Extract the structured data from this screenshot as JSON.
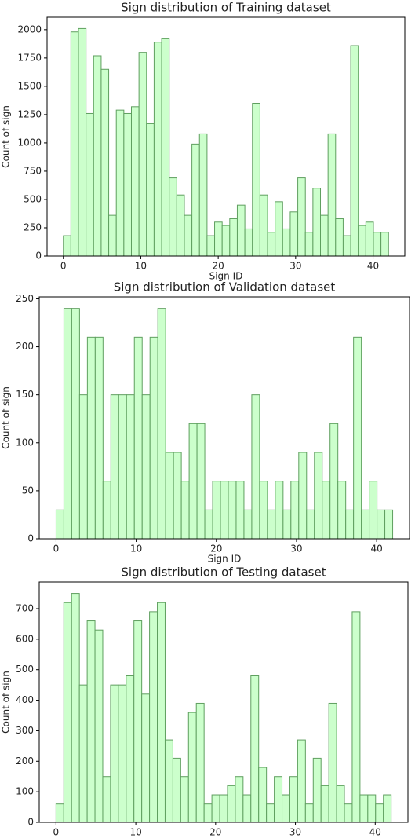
{
  "chart_data": [
    {
      "type": "histogram",
      "title": "Sign distribution of Training dataset",
      "xlabel": "Sign ID",
      "ylabel": "Count of sign",
      "bins": [
        0,
        0.977,
        1.953,
        2.93,
        3.907,
        4.884,
        5.86,
        6.837,
        7.814,
        8.791,
        9.767,
        10.744,
        11.721,
        12.698,
        13.674,
        14.651,
        15.628,
        16.605,
        17.581,
        18.558,
        19.535,
        20.512,
        21.488,
        22.465,
        23.442,
        24.419,
        25.395,
        26.372,
        27.349,
        28.326,
        29.302,
        30.279,
        31.256,
        32.233,
        33.209,
        34.186,
        35.163,
        36.14,
        37.116,
        38.093,
        39.07,
        40.047,
        41.023,
        42
      ],
      "values": [
        180,
        1980,
        2010,
        1260,
        1770,
        1650,
        360,
        1290,
        1260,
        1320,
        1800,
        1170,
        1890,
        1920,
        690,
        540,
        360,
        990,
        1080,
        180,
        300,
        270,
        330,
        450,
        240,
        1350,
        540,
        210,
        480,
        240,
        390,
        690,
        210,
        599,
        360,
        1080,
        330,
        180,
        1860,
        270,
        300,
        210,
        210
      ],
      "color": "#ccffcc",
      "edgecolor": "#5f9f5f",
      "xlim": [
        -2.1,
        44.1
      ],
      "xticks": [
        0,
        10,
        20,
        30,
        40
      ],
      "ylim": [
        0,
        2110
      ],
      "yticks": [
        0,
        250,
        500,
        750,
        1000,
        1250,
        1500,
        1750,
        2000
      ]
    },
    {
      "type": "histogram",
      "title": "Sign distribution of Validation dataset",
      "xlabel": "Sign ID",
      "ylabel": "Count of sign",
      "bins": [
        0,
        0.977,
        1.953,
        2.93,
        3.907,
        4.884,
        5.86,
        6.837,
        7.814,
        8.791,
        9.767,
        10.744,
        11.721,
        12.698,
        13.674,
        14.651,
        15.628,
        16.605,
        17.581,
        18.558,
        19.535,
        20.512,
        21.488,
        22.465,
        23.442,
        24.419,
        25.395,
        26.372,
        27.349,
        28.326,
        29.302,
        30.279,
        31.256,
        32.233,
        33.209,
        34.186,
        35.163,
        36.14,
        37.116,
        38.093,
        39.07,
        40.047,
        41.023,
        42
      ],
      "values": [
        30,
        240,
        240,
        150,
        210,
        210,
        60,
        150,
        150,
        150,
        210,
        150,
        210,
        240,
        90,
        90,
        60,
        120,
        120,
        30,
        60,
        60,
        60,
        60,
        30,
        150,
        60,
        30,
        60,
        30,
        60,
        90,
        30,
        90,
        60,
        120,
        60,
        30,
        210,
        30,
        60,
        30,
        30
      ],
      "color": "#ccffcc",
      "edgecolor": "#5f9f5f",
      "xlim": [
        -2.1,
        44.1
      ],
      "xticks": [
        0,
        10,
        20,
        30,
        40
      ],
      "ylim": [
        0,
        252
      ],
      "yticks": [
        0,
        50,
        100,
        150,
        200,
        250
      ]
    },
    {
      "type": "histogram",
      "title": "Sign distribution of Testing dataset",
      "xlabel": "Sign ID",
      "ylabel": "Count of sign",
      "bins": [
        0,
        0.977,
        1.953,
        2.93,
        3.907,
        4.884,
        5.86,
        6.837,
        7.814,
        8.791,
        9.767,
        10.744,
        11.721,
        12.698,
        13.674,
        14.651,
        15.628,
        16.605,
        17.581,
        18.558,
        19.535,
        20.512,
        21.488,
        22.465,
        23.442,
        24.419,
        25.395,
        26.372,
        27.349,
        28.326,
        29.302,
        30.279,
        31.256,
        32.233,
        33.209,
        34.186,
        35.163,
        36.14,
        37.116,
        38.093,
        39.07,
        40.047,
        41.023,
        42
      ],
      "values": [
        60,
        720,
        750,
        450,
        660,
        630,
        150,
        450,
        450,
        480,
        660,
        420,
        690,
        720,
        270,
        210,
        150,
        360,
        390,
        60,
        90,
        90,
        120,
        150,
        90,
        480,
        180,
        60,
        150,
        90,
        150,
        270,
        60,
        210,
        120,
        390,
        120,
        60,
        690,
        90,
        90,
        60,
        90
      ],
      "color": "#ccffcc",
      "edgecolor": "#5f9f5f",
      "xlim": [
        -2.1,
        44.1
      ],
      "xticks": [
        0,
        10,
        20,
        30,
        40
      ],
      "ylim": [
        0,
        787.5
      ],
      "yticks": [
        0,
        100,
        200,
        300,
        400,
        500,
        600,
        700
      ]
    }
  ]
}
